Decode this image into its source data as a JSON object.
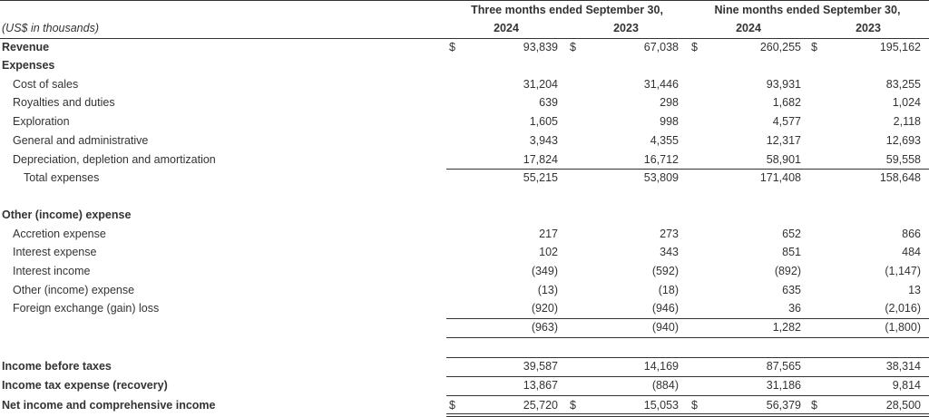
{
  "header": {
    "groups": [
      "Three months ended September 30,",
      "Nine months ended September 30,"
    ],
    "units": "(US$ in thousands)",
    "years": [
      "2024",
      "2023",
      "2024",
      "2023"
    ]
  },
  "table": {
    "rows": [
      {
        "label": "Revenue",
        "currency": "$",
        "values": [
          "93,839",
          "67,038",
          "260,255",
          "195,162"
        ]
      },
      {
        "label": "Expenses"
      },
      {
        "label": "Cost of sales",
        "values": [
          "31,204",
          "31,446",
          "93,931",
          "83,255"
        ]
      },
      {
        "label": "Royalties and duties",
        "values": [
          "639",
          "298",
          "1,682",
          "1,024"
        ]
      },
      {
        "label": "Exploration",
        "values": [
          "1,605",
          "998",
          "4,577",
          "2,118"
        ]
      },
      {
        "label": "General and administrative",
        "values": [
          "3,943",
          "4,355",
          "12,317",
          "12,693"
        ]
      },
      {
        "label": "Depreciation, depletion and amortization",
        "values": [
          "17,824",
          "16,712",
          "58,901",
          "59,558"
        ]
      },
      {
        "label": "Total expenses",
        "values": [
          "55,215",
          "53,809",
          "171,408",
          "158,648"
        ]
      },
      {
        "label": "Other (income) expense"
      },
      {
        "label": "Accretion expense",
        "values": [
          "217",
          "273",
          "652",
          "866"
        ]
      },
      {
        "label": "Interest expense",
        "values": [
          "102",
          "343",
          "851",
          "484"
        ]
      },
      {
        "label": "Interest income",
        "values": [
          "(349)",
          "(592)",
          "(892)",
          "(1,147)"
        ]
      },
      {
        "label": "Other (income) expense",
        "values": [
          "(13)",
          "(18)",
          "635",
          "13"
        ]
      },
      {
        "label": "Foreign exchange (gain) loss",
        "values": [
          "(920)",
          "(946)",
          "36",
          "(2,016)"
        ]
      },
      {
        "values": [
          "(963)",
          "(940)",
          "1,282",
          "(1,800)"
        ]
      },
      {
        "label": "Income before taxes",
        "values": [
          "39,587",
          "14,169",
          "87,565",
          "38,314"
        ]
      },
      {
        "label": "Income tax expense (recovery)",
        "values": [
          "13,867",
          "(884)",
          "31,186",
          "9,814"
        ]
      },
      {
        "label": "Net income and comprehensive income",
        "currency": "$",
        "values": [
          "25,720",
          "15,053",
          "56,379",
          "28,500"
        ]
      }
    ]
  }
}
